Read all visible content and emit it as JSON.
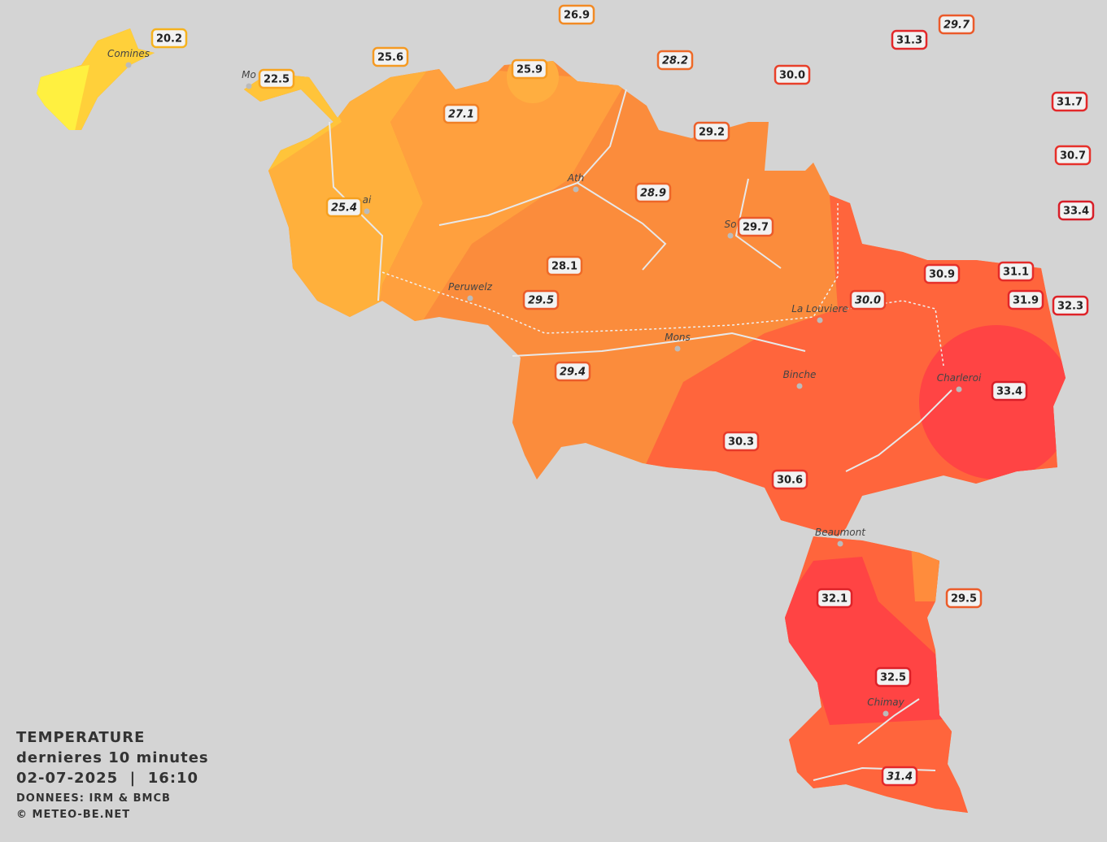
{
  "map": {
    "legend": {
      "title": "TEMPERATURE",
      "subtitle": "dernieres 10 minutes",
      "datetime": "02-07-2025  |  16:10",
      "source": "DONNEES: IRM & BMCB",
      "credit": "© METEO-BE.NET"
    },
    "cities": [
      "Comines",
      "Mo",
      "ai",
      "Ath",
      "So",
      "Peruwelz",
      "La Louviere",
      "Mons",
      "Binche",
      "Charleroi",
      "Beaumont",
      "Chimay"
    ],
    "stations": [
      {
        "text": "20.2",
        "italic": false,
        "color": "#f5b21e"
      },
      {
        "text": "22.5",
        "italic": false,
        "color": "#f7a520"
      },
      {
        "text": "25.6",
        "italic": false,
        "color": "#f59a22"
      },
      {
        "text": "26.9",
        "italic": false,
        "color": "#f28a24"
      },
      {
        "text": "25.9",
        "italic": false,
        "color": "#f59a22"
      },
      {
        "text": "27.1",
        "italic": true,
        "color": "#f08026"
      },
      {
        "text": "28.2",
        "italic": true,
        "color": "#ee6a28"
      },
      {
        "text": "30.0",
        "italic": false,
        "color": "#e8402a"
      },
      {
        "text": "31.3",
        "italic": false,
        "color": "#e3282a"
      },
      {
        "text": "29.7",
        "italic": true,
        "color": "#eb5a2a"
      },
      {
        "text": "31.7",
        "italic": false,
        "color": "#e3282a"
      },
      {
        "text": "30.7",
        "italic": false,
        "color": "#e6302a"
      },
      {
        "text": "33.4",
        "italic": false,
        "color": "#d81e28"
      },
      {
        "text": "29.2",
        "italic": false,
        "color": "#ec602a"
      },
      {
        "text": "28.9",
        "italic": true,
        "color": "#ed6629"
      },
      {
        "text": "25.4",
        "italic": true,
        "color": "#f5a020"
      },
      {
        "text": "29.7",
        "italic": false,
        "color": "#eb5a2a"
      },
      {
        "text": "28.1",
        "italic": false,
        "color": "#ee6a28"
      },
      {
        "text": "29.5",
        "italic": true,
        "color": "#eb5c2a"
      },
      {
        "text": "30.9",
        "italic": false,
        "color": "#e6302a"
      },
      {
        "text": "31.1",
        "italic": false,
        "color": "#e42c2a"
      },
      {
        "text": "31.9",
        "italic": false,
        "color": "#e2262a"
      },
      {
        "text": "32.3",
        "italic": false,
        "color": "#de2228"
      },
      {
        "text": "30.0",
        "italic": true,
        "color": "#e8402a"
      },
      {
        "text": "29.4",
        "italic": true,
        "color": "#eb5c2a"
      },
      {
        "text": "33.4",
        "italic": false,
        "color": "#d81e28"
      },
      {
        "text": "30.3",
        "italic": false,
        "color": "#e73a2a"
      },
      {
        "text": "30.6",
        "italic": false,
        "color": "#e6342a"
      },
      {
        "text": "32.1",
        "italic": false,
        "color": "#de2228"
      },
      {
        "text": "29.5",
        "italic": false,
        "color": "#eb5c2a"
      },
      {
        "text": "32.5",
        "italic": false,
        "color": "#dc2028"
      },
      {
        "text": "31.4",
        "italic": true,
        "color": "#e3282a"
      }
    ]
  }
}
